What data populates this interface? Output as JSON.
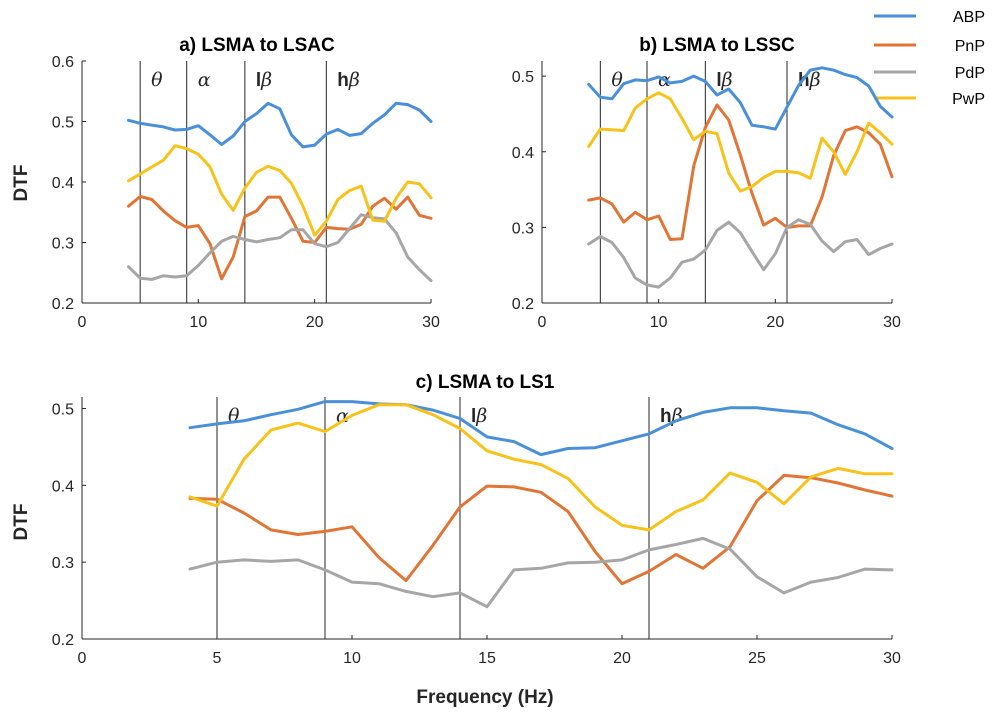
{
  "legend": [
    {
      "name": "ABP",
      "color": "#4A90D9"
    },
    {
      "name": "PnP",
      "color": "#E07535"
    },
    {
      "name": "PdP",
      "color": "#A6A6A6"
    },
    {
      "name": "PwP",
      "color": "#F7C31B"
    }
  ],
  "bands": [
    {
      "at": 5,
      "greek": "θ",
      "bold": ""
    },
    {
      "at": 9,
      "greek": "α",
      "bold": ""
    },
    {
      "at": 14,
      "greek": "β",
      "bold": "l"
    },
    {
      "at": 21,
      "greek": "β",
      "bold": "h"
    }
  ],
  "chart_data": [
    {
      "type": "line",
      "title": "a) LSMA to LSAC",
      "xlabel": "",
      "ylabel": "DTF",
      "xlim": [
        0,
        30
      ],
      "ylim": [
        0.2,
        0.6
      ],
      "xticks": [
        "0",
        "10",
        "20",
        "30"
      ],
      "yticks": [
        "0.2",
        "0.3",
        "0.4",
        "0.5",
        "0.6"
      ],
      "x": [
        4,
        5,
        6,
        7,
        8,
        9,
        10,
        11,
        12,
        13,
        14,
        15,
        16,
        17,
        18,
        19,
        20,
        21,
        22,
        23,
        24,
        25,
        26,
        27,
        28,
        29,
        30
      ],
      "series": [
        {
          "name": "ABP",
          "values": [
            0.502,
            0.497,
            0.494,
            0.491,
            0.486,
            0.487,
            0.493,
            0.478,
            0.462,
            0.476,
            0.5,
            0.513,
            0.53,
            0.521,
            0.478,
            0.458,
            0.461,
            0.479,
            0.487,
            0.477,
            0.48,
            0.497,
            0.511,
            0.53,
            0.528,
            0.519,
            0.5
          ]
        },
        {
          "name": "PnP",
          "values": [
            0.36,
            0.376,
            0.371,
            0.352,
            0.336,
            0.325,
            0.328,
            0.298,
            0.24,
            0.276,
            0.343,
            0.352,
            0.375,
            0.375,
            0.34,
            0.302,
            0.3,
            0.325,
            0.323,
            0.322,
            0.33,
            0.36,
            0.373,
            0.355,
            0.375,
            0.345,
            0.34
          ]
        },
        {
          "name": "PdP",
          "values": [
            0.26,
            0.241,
            0.239,
            0.245,
            0.243,
            0.245,
            0.262,
            0.283,
            0.302,
            0.31,
            0.305,
            0.301,
            0.305,
            0.308,
            0.321,
            0.321,
            0.298,
            0.293,
            0.3,
            0.323,
            0.346,
            0.341,
            0.339,
            0.316,
            0.276,
            0.255,
            0.237
          ]
        },
        {
          "name": "PwP",
          "values": [
            0.402,
            0.413,
            0.425,
            0.436,
            0.46,
            0.455,
            0.446,
            0.425,
            0.38,
            0.353,
            0.39,
            0.416,
            0.426,
            0.419,
            0.398,
            0.36,
            0.312,
            0.335,
            0.371,
            0.386,
            0.393,
            0.337,
            0.335,
            0.373,
            0.4,
            0.397,
            0.374
          ]
        }
      ]
    },
    {
      "type": "line",
      "title": "b) LSMA to LSSC",
      "xlabel": "",
      "ylabel": "",
      "xlim": [
        0,
        30
      ],
      "ylim": [
        0.2,
        0.52
      ],
      "xticks": [
        "0",
        "10",
        "20",
        "30"
      ],
      "yticks": [
        "0.2",
        "0.3",
        "0.4",
        "0.5"
      ],
      "x": [
        4,
        5,
        6,
        7,
        8,
        9,
        10,
        11,
        12,
        13,
        14,
        15,
        16,
        17,
        18,
        19,
        20,
        21,
        22,
        23,
        24,
        25,
        26,
        27,
        28,
        29,
        30
      ],
      "series": [
        {
          "name": "ABP",
          "values": [
            0.489,
            0.472,
            0.47,
            0.49,
            0.495,
            0.494,
            0.499,
            0.491,
            0.493,
            0.5,
            0.493,
            0.475,
            0.483,
            0.465,
            0.435,
            0.433,
            0.43,
            0.459,
            0.488,
            0.508,
            0.511,
            0.508,
            0.502,
            0.498,
            0.487,
            0.46,
            0.446
          ]
        },
        {
          "name": "PnP",
          "values": [
            0.336,
            0.339,
            0.331,
            0.307,
            0.32,
            0.31,
            0.315,
            0.284,
            0.285,
            0.381,
            0.432,
            0.462,
            0.442,
            0.396,
            0.345,
            0.303,
            0.312,
            0.3,
            0.302,
            0.302,
            0.34,
            0.395,
            0.428,
            0.433,
            0.425,
            0.41,
            0.367
          ]
        },
        {
          "name": "PdP",
          "values": [
            0.278,
            0.288,
            0.28,
            0.26,
            0.233,
            0.224,
            0.221,
            0.233,
            0.254,
            0.258,
            0.27,
            0.296,
            0.307,
            0.293,
            0.268,
            0.244,
            0.265,
            0.3,
            0.31,
            0.304,
            0.282,
            0.268,
            0.281,
            0.284,
            0.264,
            0.272,
            0.278
          ]
        },
        {
          "name": "PwP",
          "values": [
            0.407,
            0.43,
            0.429,
            0.428,
            0.458,
            0.47,
            0.478,
            0.47,
            0.444,
            0.416,
            0.427,
            0.424,
            0.372,
            0.348,
            0.354,
            0.366,
            0.374,
            0.374,
            0.372,
            0.365,
            0.418,
            0.4,
            0.37,
            0.4,
            0.438,
            0.425,
            0.41
          ]
        }
      ]
    },
    {
      "type": "line",
      "title": "c) LSMA to LS1",
      "xlabel": "Frequency (Hz)",
      "ylabel": "DTF",
      "xlim": [
        0,
        30
      ],
      "ylim": [
        0.2,
        0.515
      ],
      "xticks": [
        "0",
        "5",
        "10",
        "15",
        "20",
        "25",
        "30"
      ],
      "yticks": [
        "0.2",
        "0.3",
        "0.4",
        "0.5"
      ],
      "x": [
        4,
        5,
        6,
        7,
        8,
        9,
        10,
        11,
        12,
        13,
        14,
        15,
        16,
        17,
        18,
        19,
        20,
        21,
        22,
        23,
        24,
        25,
        26,
        27,
        28,
        29,
        30
      ],
      "series": [
        {
          "name": "ABP",
          "values": [
            0.475,
            0.48,
            0.484,
            0.492,
            0.499,
            0.509,
            0.509,
            0.506,
            0.505,
            0.498,
            0.487,
            0.463,
            0.457,
            0.44,
            0.448,
            0.449,
            0.458,
            0.467,
            0.484,
            0.495,
            0.501,
            0.501,
            0.497,
            0.494,
            0.479,
            0.467,
            0.448
          ]
        },
        {
          "name": "PnP",
          "values": [
            0.383,
            0.382,
            0.364,
            0.342,
            0.336,
            0.34,
            0.346,
            0.306,
            0.276,
            0.322,
            0.372,
            0.399,
            0.398,
            0.391,
            0.366,
            0.314,
            0.272,
            0.288,
            0.31,
            0.292,
            0.32,
            0.38,
            0.413,
            0.41,
            0.403,
            0.394,
            0.386
          ]
        },
        {
          "name": "PdP",
          "values": [
            0.291,
            0.3,
            0.303,
            0.301,
            0.303,
            0.29,
            0.274,
            0.272,
            0.262,
            0.255,
            0.26,
            0.242,
            0.29,
            0.292,
            0.299,
            0.3,
            0.303,
            0.316,
            0.323,
            0.331,
            0.317,
            0.281,
            0.26,
            0.274,
            0.28,
            0.291,
            0.29
          ]
        },
        {
          "name": "PwP",
          "values": [
            0.385,
            0.373,
            0.434,
            0.472,
            0.481,
            0.47,
            0.491,
            0.505,
            0.505,
            0.492,
            0.474,
            0.445,
            0.434,
            0.427,
            0.409,
            0.372,
            0.348,
            0.342,
            0.366,
            0.381,
            0.416,
            0.404,
            0.376,
            0.411,
            0.422,
            0.415,
            0.415
          ]
        }
      ]
    }
  ]
}
